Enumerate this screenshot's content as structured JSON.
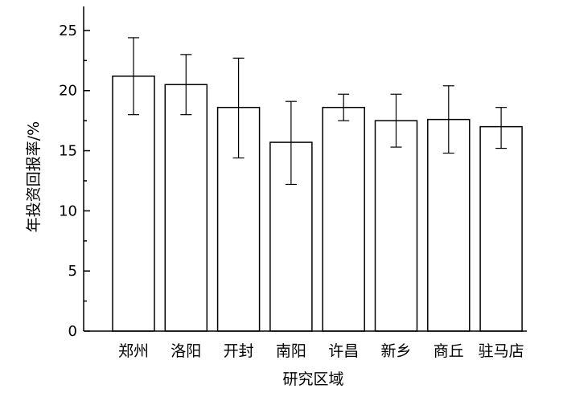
{
  "chart_data": {
    "type": "bar",
    "title": "",
    "xlabel": "研究区域",
    "ylabel": "年投资回报率/%",
    "categories": [
      "郑州",
      "洛阳",
      "开封",
      "南阳",
      "许昌",
      "新乡",
      "商丘",
      "驻马店"
    ],
    "series": [
      {
        "values": [
          21.2,
          20.5,
          18.6,
          15.7,
          18.6,
          17.5,
          17.6,
          17.0
        ],
        "error_low": [
          18.0,
          18.0,
          14.4,
          12.2,
          17.5,
          15.3,
          14.8,
          15.2
        ],
        "error_high": [
          24.4,
          23.0,
          22.7,
          19.1,
          19.7,
          19.7,
          20.4,
          18.6
        ]
      }
    ],
    "ylim": [
      0,
      27
    ],
    "yticks": [
      0,
      5,
      10,
      15,
      20,
      25
    ],
    "grid": false,
    "legend": "none",
    "bar_fill": "#ffffff",
    "bar_stroke": "#000000"
  }
}
